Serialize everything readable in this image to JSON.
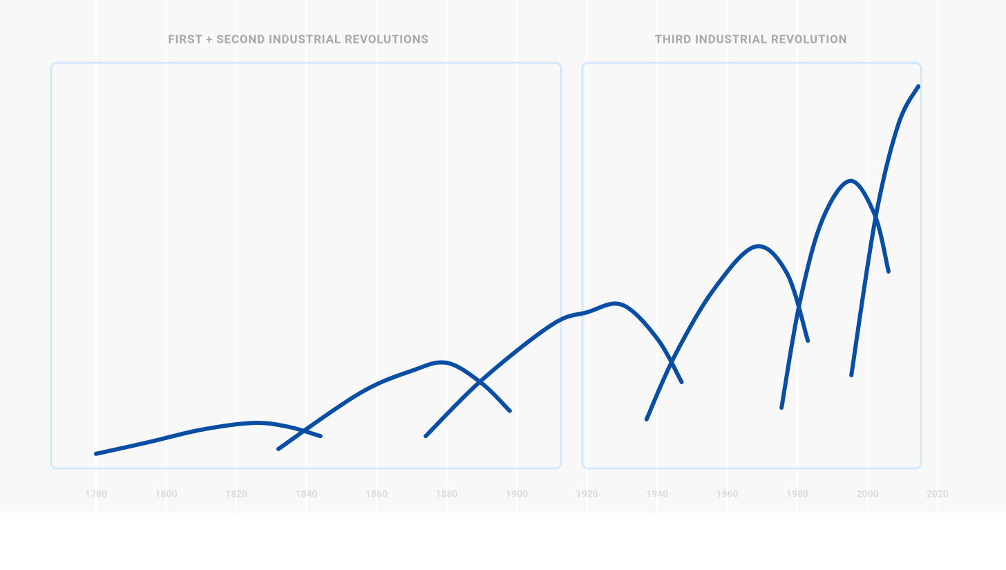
{
  "chart_data": {
    "type": "line",
    "panels": [
      {
        "title": "FIRST + SECOND INDUSTRIAL REVOLUTIONS"
      },
      {
        "title": "THIRD INDUSTRIAL REVOLUTION"
      }
    ],
    "series": [
      {
        "color": "#0a4ea3",
        "x": [
          1780,
          1795,
          1810,
          1825,
          1835,
          1844
        ],
        "values": [
          4.0,
          6.9,
          10.0,
          11.7,
          10.7,
          8.4
        ]
      },
      {
        "color": "#0a4ea3",
        "x": [
          1832,
          1855,
          1870,
          1880,
          1890,
          1898
        ],
        "values": [
          5.2,
          19.0,
          24.7,
          26.7,
          21.6,
          14.7
        ]
      },
      {
        "color": "#0a4ea3",
        "x": [
          1874,
          1890,
          1910,
          1920,
          1930,
          1940,
          1947
        ],
        "values": [
          8.4,
          22.4,
          36.2,
          39.3,
          41.2,
          32.8,
          21.9
        ]
      },
      {
        "color": "#0a4ea3",
        "x": [
          1937,
          1945,
          1956,
          1968,
          1977,
          1983
        ],
        "values": [
          12.6,
          28.4,
          44.8,
          55.7,
          49.1,
          32.2
        ]
      },
      {
        "color": "#0a4ea3",
        "x": [
          1975.5,
          1980.6,
          1987,
          1995,
          2002,
          2006
        ],
        "values": [
          15.5,
          41.4,
          62.1,
          72.1,
          63.8,
          49.5
        ]
      },
      {
        "color": "#0a4ea3",
        "x": [
          1995.4,
          2002.3,
          2008.8,
          2014.5
        ],
        "values": [
          23.6,
          62.9,
          86.2,
          95.7
        ]
      }
    ],
    "xlim": [
      1760,
      2030
    ],
    "xticks": [
      1780,
      1800,
      1820,
      1840,
      1860,
      1880,
      1900,
      1920,
      1940,
      1960,
      1980,
      2000,
      2020
    ],
    "ylim": [
      0,
      100
    ],
    "grid": true
  }
}
